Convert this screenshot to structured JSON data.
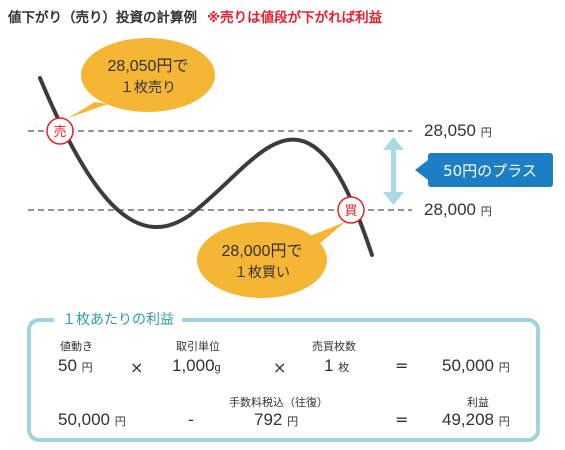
{
  "title": {
    "main": "値下がり（売り）投資の計算例",
    "note": "※売りは値段が下がれば利益"
  },
  "chart": {
    "sell_mark": "売",
    "buy_mark": "買",
    "sell_bubble_line1": "28,050円で",
    "sell_bubble_line2": "１枚売り",
    "buy_bubble_line1": "28,000円で",
    "buy_bubble_line2": "１枚買い",
    "upper_price": "28,050",
    "lower_price": "28,000",
    "price_unit": "円",
    "gain_label": "50円のプラス",
    "colors": {
      "accent": "#1c7fc4",
      "bubble": "#f5b535",
      "mark": "#e8202e",
      "arrow": "#a8dae3",
      "curve": "#3c3c3c"
    }
  },
  "card": {
    "title": "１枚あたりの利益",
    "row1": {
      "label_a": "値動き",
      "value_a": "50",
      "unit_a": "円",
      "op1": "×",
      "label_b": "取引単位",
      "value_b": "1,000",
      "unit_b": "g",
      "op2": "×",
      "label_c": "売買枚数",
      "value_c": "1",
      "unit_c": "枚",
      "op3": "=",
      "value_d": "50,000",
      "unit_d": "円"
    },
    "row2": {
      "value_a": "50,000",
      "unit_a": "円",
      "op1": "-",
      "label_b": "手数料税込（往復）",
      "value_b": "792",
      "unit_b": "円",
      "op2": "=",
      "label_c": "利益",
      "value_c": "49,208",
      "unit_c": "円"
    }
  }
}
